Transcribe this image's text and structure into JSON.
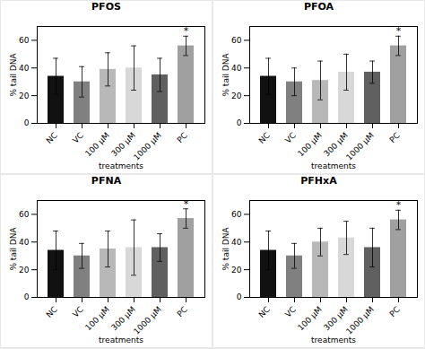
{
  "chart_data": [
    {
      "type": "bar",
      "title": "PFOS",
      "categories": [
        "NC",
        "VC",
        "100 μM",
        "300 μM",
        "1000 μM",
        "PC"
      ],
      "values": [
        34,
        30,
        39,
        40,
        35,
        56
      ],
      "errors": [
        13,
        11,
        12,
        16,
        12,
        7
      ],
      "colors": [
        "#111111",
        "#808080",
        "#b8b8b8",
        "#d8d8d8",
        "#606060",
        "#a0a0a0"
      ],
      "annotations": [
        {
          "x": "PC",
          "text": "*"
        }
      ],
      "xlabel": "treatments",
      "ylabel": "% tail DNA",
      "ylim": [
        0,
        70
      ],
      "yticks": [
        0,
        20,
        40,
        60
      ],
      "grid": false
    },
    {
      "type": "bar",
      "title": "PFOA",
      "categories": [
        "NC",
        "VC",
        "100 μM",
        "300 μM",
        "1000 μM",
        "PC"
      ],
      "values": [
        34,
        30,
        31,
        37,
        37,
        56
      ],
      "errors": [
        13,
        10,
        14,
        13,
        8,
        7
      ],
      "colors": [
        "#111111",
        "#808080",
        "#b8b8b8",
        "#d8d8d8",
        "#606060",
        "#a0a0a0"
      ],
      "annotations": [
        {
          "x": "PC",
          "text": "*"
        }
      ],
      "xlabel": "treatments",
      "ylabel": "% tail DNA",
      "ylim": [
        0,
        70
      ],
      "yticks": [
        0,
        20,
        40,
        60
      ],
      "grid": false
    },
    {
      "type": "bar",
      "title": "PFNA",
      "categories": [
        "NC",
        "VC",
        "100 μM",
        "300 μM",
        "1000 μM",
        "PC"
      ],
      "values": [
        34,
        30,
        35,
        36,
        36,
        57
      ],
      "errors": [
        14,
        9,
        13,
        20,
        10,
        7
      ],
      "colors": [
        "#111111",
        "#808080",
        "#b8b8b8",
        "#d8d8d8",
        "#606060",
        "#a0a0a0"
      ],
      "annotations": [
        {
          "x": "PC",
          "text": "*"
        }
      ],
      "xlabel": "treatments",
      "ylabel": "% tail DNA",
      "ylim": [
        0,
        70
      ],
      "yticks": [
        0,
        20,
        40,
        60
      ],
      "grid": false
    },
    {
      "type": "bar",
      "title": "PFHxA",
      "categories": [
        "NC",
        "VC",
        "100 μM",
        "300 μM",
        "1000 μM",
        "PC"
      ],
      "values": [
        34,
        30,
        40,
        43,
        36,
        56
      ],
      "errors": [
        14,
        9,
        10,
        12,
        14,
        7
      ],
      "colors": [
        "#111111",
        "#808080",
        "#b8b8b8",
        "#d8d8d8",
        "#606060",
        "#a0a0a0"
      ],
      "annotations": [
        {
          "x": "PC",
          "text": "*"
        }
      ],
      "xlabel": "treatments",
      "ylabel": "% tail DNA",
      "ylim": [
        0,
        70
      ],
      "yticks": [
        0,
        20,
        40,
        60
      ],
      "grid": false
    }
  ]
}
